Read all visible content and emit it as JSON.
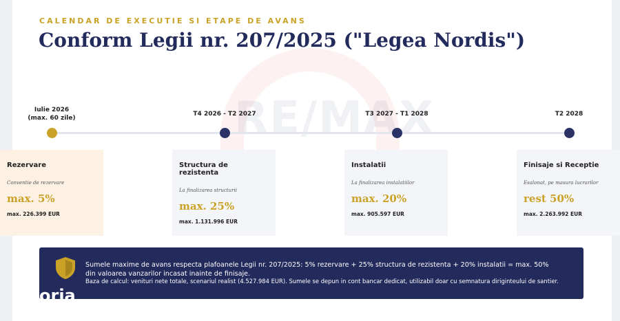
{
  "header": {
    "eyebrow": "CALENDAR DE EXECUTIE SI ETAPE DE AVANS",
    "title": "Conform Legii nr. 207/2025 (\"Legea Nordis\")"
  },
  "watermark": "RE/MAX",
  "timeline": [
    {
      "lines": [
        "Iulie 2026",
        "(max. 60 zile)"
      ]
    },
    {
      "lines": [
        "T4 2026 - T2 2027"
      ]
    },
    {
      "lines": [
        "T3 2027 - T1 2028"
      ]
    },
    {
      "lines": [
        "T2 2028"
      ]
    }
  ],
  "cards": [
    {
      "title": "Rezervare",
      "note": "Conventie de rezervare",
      "value": "max. 5%",
      "amount": "max. 226.399 EUR"
    },
    {
      "title": "Structura de rezistenta",
      "note": "La finalizarea structurii",
      "value": "max. 25%",
      "amount": "max. 1.131.996 EUR"
    },
    {
      "title": "Instalatii",
      "note": "La finalizarea instalatiilor",
      "value": "max. 20%",
      "amount": "max. 905.597 EUR"
    },
    {
      "title": "Finisaje si Receptie",
      "note": "Esalonat, pe masura lucrarilor",
      "value": "rest 50%",
      "amount": "max. 2.263.992 EUR"
    }
  ],
  "notice": {
    "main": "Sumele maxime de avans respecta plafoanele Legii nr. 207/2025: 5% rezervare + 25% structura de rezistenta + 20% instalatii = max. 50% din valoarea vanzarilor incasat inainte de finisaje.",
    "basis": "Baza de calcul: venituri nete totale, scenariul realist (4.527.984 EUR). Sumele se depun in cont bancar dedicat, utilizabil doar cu semnatura diriginteului de santier.",
    "logo": "oria"
  }
}
